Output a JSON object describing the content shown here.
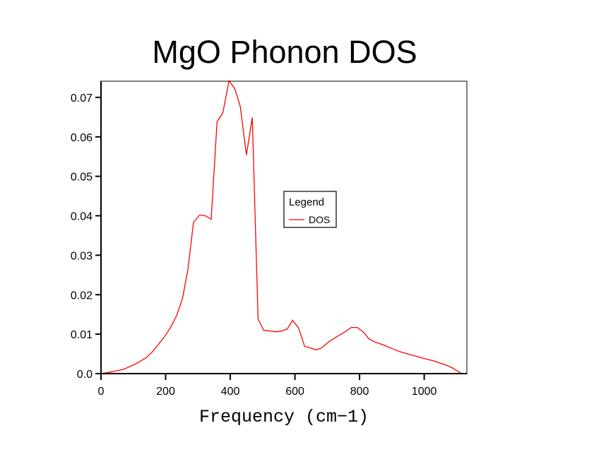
{
  "chart_data": {
    "type": "line",
    "title": "MgO Phonon DOS",
    "xlabel": "Frequency (cm−1)",
    "ylabel": "",
    "xlim": [
      0,
      1132
    ],
    "ylim": [
      0,
      0.0741
    ],
    "xticks": [
      0,
      200,
      400,
      600,
      800,
      1000
    ],
    "xtick_labels": [
      "0",
      "200",
      "400",
      "600",
      "800",
      "1000"
    ],
    "yticks": [
      0,
      0.01,
      0.02,
      0.03,
      0.04,
      0.05,
      0.06,
      0.07
    ],
    "ytick_labels": [
      "0.0",
      "0.01",
      "0.02",
      "0.03",
      "0.04",
      "0.05",
      "0.06",
      "0.07"
    ],
    "grid": false,
    "legend": {
      "title": "Legend",
      "placement": "center-right"
    },
    "series": [
      {
        "name": "DOS",
        "color": "#ff0000",
        "x": [
          0,
          37,
          70,
          106,
          139,
          161,
          197,
          216,
          234,
          252,
          269,
          286,
          305,
          323,
          341,
          359,
          377,
          396,
          414,
          431,
          450,
          468,
          486,
          503,
          540,
          558,
          576,
          593,
          611,
          630,
          648,
          666,
          684,
          702,
          721,
          739,
          757,
          775,
          793,
          811,
          829,
          848,
          866,
          884,
          902,
          920,
          939,
          957,
          975,
          993,
          1011,
          1030,
          1048,
          1066,
          1084,
          1102,
          1116
        ],
        "y": [
          0,
          0.0005,
          0.0011,
          0.0024,
          0.004,
          0.0057,
          0.0094,
          0.0118,
          0.0147,
          0.019,
          0.0264,
          0.0383,
          0.0402,
          0.04,
          0.0391,
          0.0638,
          0.0661,
          0.0742,
          0.0722,
          0.0677,
          0.0554,
          0.0649,
          0.0138,
          0.011,
          0.0106,
          0.0108,
          0.0113,
          0.0135,
          0.0116,
          0.0069,
          0.0065,
          0.006,
          0.0066,
          0.0079,
          0.0089,
          0.0098,
          0.0107,
          0.0117,
          0.0117,
          0.0106,
          0.0088,
          0.008,
          0.0075,
          0.0069,
          0.0063,
          0.0057,
          0.0052,
          0.0048,
          0.0044,
          0.004,
          0.0036,
          0.0032,
          0.0027,
          0.0022,
          0.0016,
          0.0007,
          0
        ]
      }
    ]
  }
}
